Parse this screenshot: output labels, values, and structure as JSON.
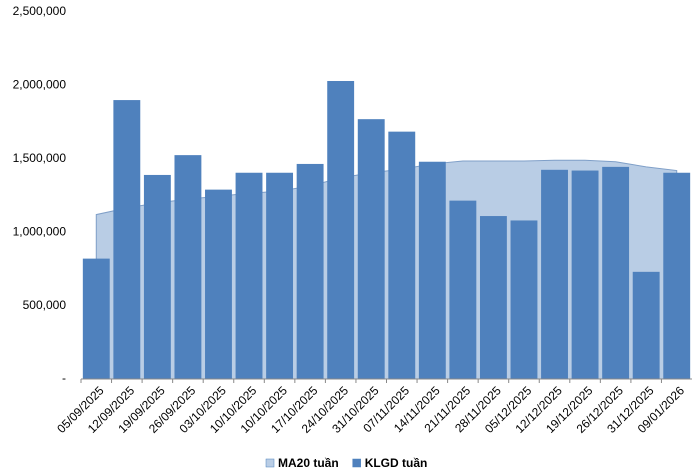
{
  "chart_data": {
    "type": "bar",
    "categories": [
      "05/09/2025",
      "12/09/2025",
      "19/09/2025",
      "26/09/2025",
      "03/10/2025",
      "10/10/2025",
      "10/10/2025",
      "17/10/2025",
      "24/10/2025",
      "31/10/2025",
      "07/11/2025",
      "14/11/2025",
      "21/11/2025",
      "28/11/2025",
      "05/12/2025",
      "12/12/2025",
      "19/12/2025",
      "26/12/2025",
      "31/12/2025",
      "09/01/2026"
    ],
    "series": [
      {
        "name": "MA20 tuần",
        "type": "area",
        "color": "#b9cde5",
        "values": [
          1120000,
          1165000,
          1200000,
          1225000,
          1245000,
          1265000,
          1280000,
          1315000,
          1370000,
          1405000,
          1430000,
          1465000,
          1485000,
          1485000,
          1485000,
          1490000,
          1490000,
          1480000,
          1445000,
          1420000
        ]
      },
      {
        "name": "KLGD tuần",
        "type": "bar",
        "color": "#4f81bd",
        "values": [
          820000,
          1900000,
          1390000,
          1525000,
          1290000,
          1405000,
          1405000,
          1465000,
          2030000,
          1770000,
          1685000,
          1480000,
          1215000,
          1110000,
          1080000,
          1425000,
          1420000,
          1445000,
          730000,
          1405000
        ]
      }
    ],
    "ylim": [
      0,
      2500000
    ],
    "yticks": [
      {
        "value": 0,
        "label": "-"
      },
      {
        "value": 500000,
        "label": "500,000"
      },
      {
        "value": 1000000,
        "label": "1,000,000"
      },
      {
        "value": 1500000,
        "label": "1,500,000"
      },
      {
        "value": 2000000,
        "label": "2,000,000"
      },
      {
        "value": 2500000,
        "label": "2,500,000"
      }
    ],
    "grid": false
  }
}
